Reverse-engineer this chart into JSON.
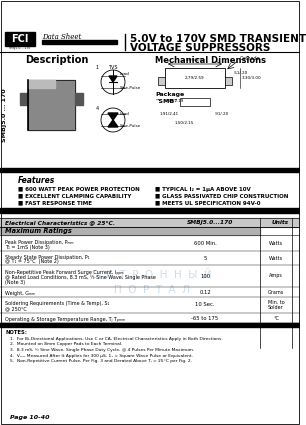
{
  "title_line1": "5.0V to 170V SMD TRANSIENT",
  "title_line2": "VOLTAGE SUPPRESSORS",
  "company": "FCI",
  "data_sheet_text": "Data Sheet",
  "sidebar_text": "SMBJ5.0 ... 170",
  "description_title": "Description",
  "mech_title": "Mechanical Dimensions",
  "features_title": "Features",
  "features_left": [
    "■ 600 WATT PEAK POWER PROTECTION",
    "■ EXCELLENT CLAMPING CAPABILITY",
    "■ FAST RESPONSE TIME"
  ],
  "features_right": [
    "■ TYPICAL I₂ = 1μA ABOVE 10V",
    "■ GLASS PASSIVATED CHIP CONSTRUCTION",
    "■ MEETS UL SPECIFICATION 94V-0"
  ],
  "table_header_left": "Electrical Characteristics @ 25°C.",
  "table_header_mid": "SMBJ5.0...170",
  "table_header_right": "Units",
  "max_ratings_title": "Maximum Ratings",
  "table_rows": [
    {
      "param_lines": [
        "Peak Power Dissipation, Pₘₘ",
        "T₁ = 1mS (Note 3)"
      ],
      "value": "600 Min.",
      "unit": "Watts"
    },
    {
      "param_lines": [
        "Steady State Power Dissipation, P₁",
        "@ T₁ = 75°C  (Note 2)"
      ],
      "value": "5",
      "unit": "Watts"
    },
    {
      "param_lines": [
        "Non-Repetitive Peak Forward Surge Current, Iₚₚₘ",
        "@ Rated Load Conditions, 8.3 mS, ½ Sine Wave, Single Phase",
        "(Note 3)"
      ],
      "value": "100",
      "unit": "Amps"
    },
    {
      "param_lines": [
        "Weight, Gₘₘ"
      ],
      "value": "0.12",
      "unit": "Grams"
    },
    {
      "param_lines": [
        "Soldering Requirements (Time & Temp), S₁",
        "@ 250°C"
      ],
      "value": "10 Sec.",
      "unit": "Min. to\nSolder"
    },
    {
      "param_lines": [
        "Operating & Storage Temperature Range, Tⱼ Tₚₘₘ"
      ],
      "value": "-65 to 175",
      "unit": "°C"
    }
  ],
  "notes_title": "NOTES:",
  "notes": [
    "1.  For Bi-Directional Applications, Use C or CA, Electrical Characteristics Apply in Both Directions.",
    "2.  Mounted on 8mm Copper Pads to Each Terminal.",
    "3.  8.3 mS, ½ Sine Wave, Single Phase Duty Cycle, @ 4 Pulses Per Minute Maximum.",
    "4.  Vₘₘ Measured After It Applies for 300 μS, 1₁ = Square Wave Pulse or Equivalent.",
    "5.  Non-Repetitive Current Pulse, Per Fig. 3 and Derated Above Tⱼ = 25°C per Fig. 2."
  ],
  "page_number": "Page 10-40",
  "bg_color": "#ffffff",
  "table_header_bg": "#c8c8c8",
  "max_ratings_bg": "#b0b0b0",
  "watermark_text1": "Э  К  Т  Р  О  Н  Н  Ы  Й",
  "watermark_text2": "П  О  Р  Т  А  Л",
  "watermark_color": "#b8cfe8"
}
